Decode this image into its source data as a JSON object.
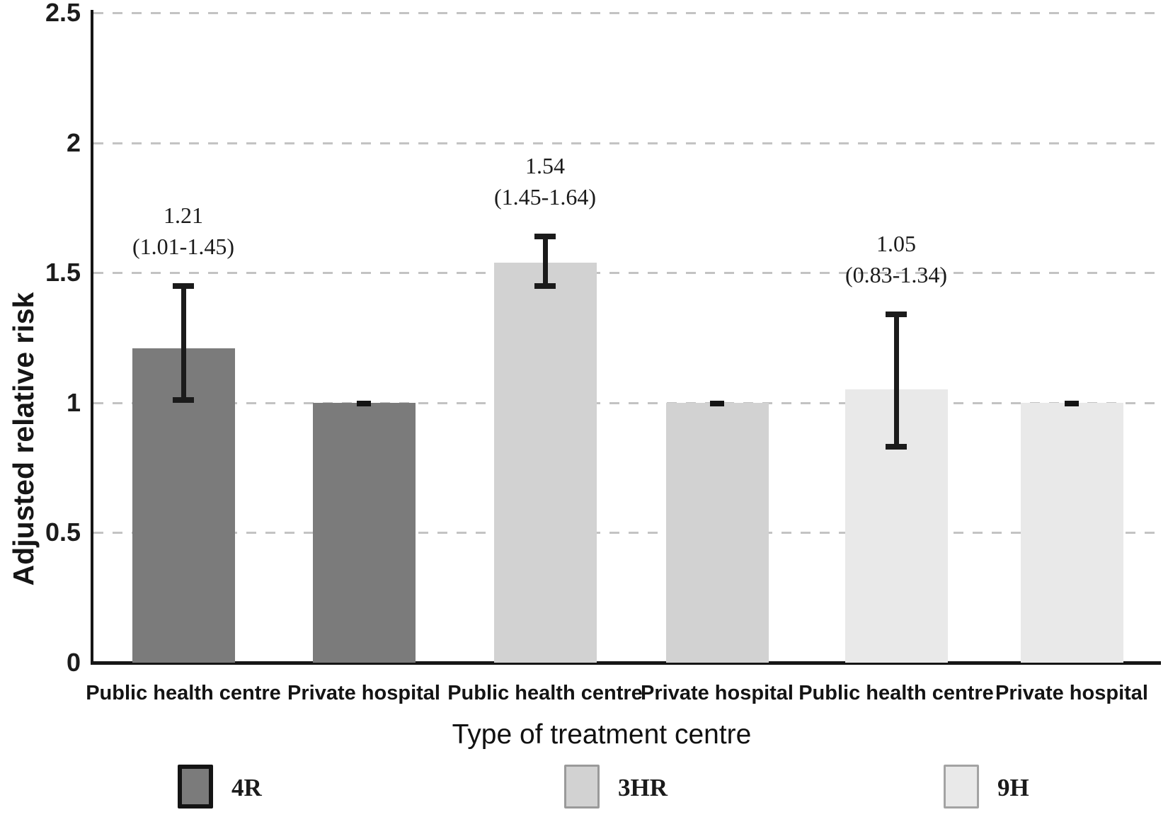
{
  "chart_data": {
    "type": "bar",
    "title": "",
    "xlabel": "Type of treatment centre",
    "ylabel": "Adjusted relative risk",
    "ylim": [
      0,
      2.5
    ],
    "yticks": [
      0,
      0.5,
      1,
      1.5,
      2,
      2.5
    ],
    "grid": "horizontal-dashed",
    "legend_position": "bottom",
    "bars": [
      {
        "group": "4R",
        "category": "Public health centre",
        "value": 1.21,
        "ci_low": 1.01,
        "ci_high": 1.45,
        "value_label": "1.21",
        "ci_label": "(1.01-1.45)",
        "reference": false
      },
      {
        "group": "4R",
        "category": "Private hospital",
        "value": 1.0,
        "ci_low": 1.0,
        "ci_high": 1.0,
        "value_label": "",
        "ci_label": "",
        "reference": true
      },
      {
        "group": "3HR",
        "category": "Public health centre",
        "value": 1.54,
        "ci_low": 1.45,
        "ci_high": 1.64,
        "value_label": "1.54",
        "ci_label": "(1.45-1.64)",
        "reference": false
      },
      {
        "group": "3HR",
        "category": "Private hospital",
        "value": 1.0,
        "ci_low": 1.0,
        "ci_high": 1.0,
        "value_label": "",
        "ci_label": "",
        "reference": true
      },
      {
        "group": "9H",
        "category": "Public health centre",
        "value": 1.05,
        "ci_low": 0.83,
        "ci_high": 1.34,
        "value_label": "1.05",
        "ci_label": "(0.83-1.34)",
        "reference": false
      },
      {
        "group": "9H",
        "category": "Private hospital",
        "value": 1.0,
        "ci_low": 1.0,
        "ci_high": 1.0,
        "value_label": "",
        "ci_label": "",
        "reference": true
      }
    ],
    "legend": [
      {
        "name": "4R",
        "color": "#7b7b7b",
        "border_color": "#141414",
        "border_width": 6
      },
      {
        "name": "3HR",
        "color": "#d2d2d2",
        "border_color": "#9a9a9a",
        "border_width": 3
      },
      {
        "name": "9H",
        "color": "#e9e9e9",
        "border_color": "#a3a3a3",
        "border_width": 3
      }
    ],
    "colors": {
      "series_4R": "#7b7b7b",
      "series_3HR": "#d2d2d2",
      "series_9H": "#e9e9e9",
      "axis": "#161616",
      "gridline": "#c3c3c3",
      "error_bar": "#1b1b1b",
      "background": "#ffffff"
    }
  }
}
